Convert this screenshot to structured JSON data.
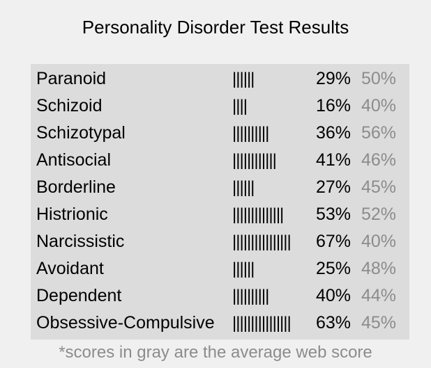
{
  "title": "Personality Disorder Test Results",
  "table": {
    "rows": [
      [
        "Paranoid",
        "||||||",
        "29%",
        "50%"
      ],
      [
        "Schizoid",
        "||||",
        "16%",
        "40%"
      ],
      [
        "Schizotypal",
        "||||||||||",
        "36%",
        "56%"
      ],
      [
        "Antisocial",
        "||||||||||||",
        "41%",
        "46%"
      ],
      [
        "Borderline",
        "||||||",
        "27%",
        "45%"
      ],
      [
        "Histrionic",
        "||||||||||||||",
        "53%",
        "52%"
      ],
      [
        "Narcissistic",
        "||||||||||||||||",
        "67%",
        "40%"
      ],
      [
        "Avoidant",
        "||||||",
        "25%",
        "48%"
      ],
      [
        "Dependent",
        "||||||||||",
        "40%",
        "44%"
      ],
      [
        "Obsessive-Compulsive",
        "||||||||||||||||",
        "63%",
        "45%"
      ]
    ]
  },
  "footnote": "*scores in gray are the average web score"
}
